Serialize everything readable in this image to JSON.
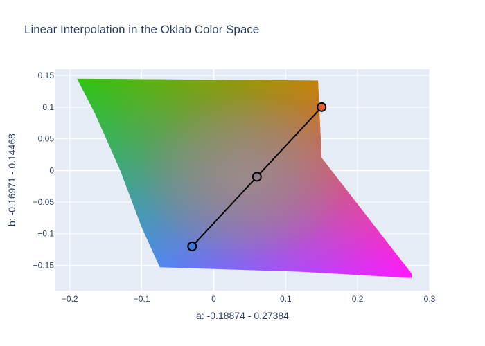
{
  "chart_data": {
    "type": "scatter",
    "title": "Linear Interpolation in the Oklab Color Space",
    "xlabel": "a: -0.18874 - 0.27384",
    "ylabel": "b: -0.16971 - 0.14468",
    "xlim": [
      -0.22,
      0.3
    ],
    "ylim": [
      -0.19,
      0.16
    ],
    "x_ticks": [
      -0.2,
      -0.1,
      0,
      0.1,
      0.2,
      0.3
    ],
    "x_tick_labels": [
      "−0.2",
      "−0.1",
      "0",
      "0.1",
      "0.2",
      "0.3"
    ],
    "y_ticks": [
      -0.15,
      -0.1,
      -0.05,
      0,
      0.05,
      0.1,
      0.15
    ],
    "y_tick_labels": [
      "−0.15",
      "−0.1",
      "−0.05",
      "0",
      "0.05",
      "0.1",
      "0.15"
    ],
    "grid": true,
    "gamut_region": {
      "outline_a": [
        -0.19,
        -0.165,
        -0.13,
        -0.1,
        -0.075,
        0.12,
        0.275,
        0.275,
        0.15,
        0.145
      ],
      "outline_b": [
        0.145,
        0.09,
        0.0,
        -0.09,
        -0.153,
        -0.16,
        -0.17,
        -0.163,
        0.02,
        0.142
      ],
      "corner_colors": {
        "top_left": "#2ec513",
        "top_right": "#ff6a00",
        "bottom_left": "#15a8ff",
        "bottom_right": "#ff19ff",
        "center": "#a08e8e"
      }
    },
    "interpolation_line": {
      "a": [
        -0.03,
        0.06,
        0.15
      ],
      "b": [
        -0.12,
        -0.01,
        0.1
      ],
      "marker_fills": [
        "#3b7ad8",
        "#8e7a8c",
        "#e05f3a"
      ],
      "line_color": "#000000"
    },
    "colors": {
      "plot_bg": "#e5ecf6",
      "grid": "#ffffff",
      "text": "#2a3f5f"
    }
  }
}
